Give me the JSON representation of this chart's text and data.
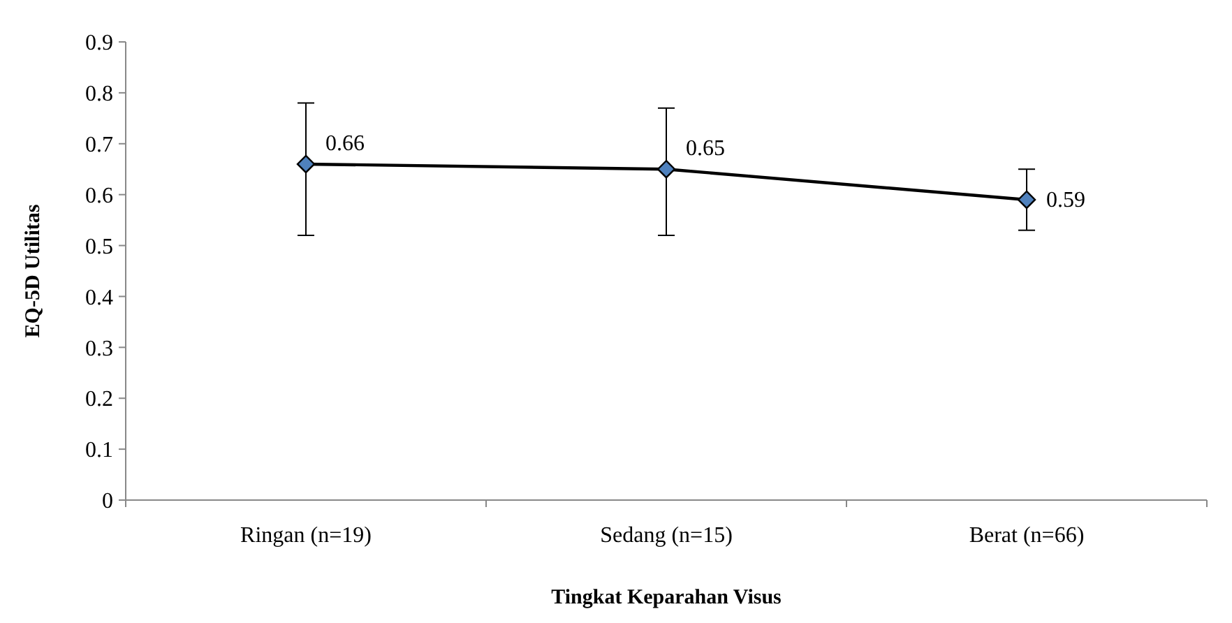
{
  "chart_data": {
    "type": "line",
    "xlabel": "Tingkat Keparahan Visus",
    "ylabel": "EQ-5D Utilitas",
    "categories": [
      "Ringan (n=19)",
      "Sedang (n=15)",
      "Berat (n=66)"
    ],
    "series": [
      {
        "color": "#000000",
        "values": [
          0.66,
          0.65,
          0.59
        ],
        "errors": [
          [
            0.52,
            0.78
          ],
          [
            0.52,
            0.77
          ],
          [
            0.53,
            0.65
          ]
        ]
      }
    ],
    "ylim": [
      0,
      0.9
    ],
    "yticks": [
      0,
      0.1,
      0.2,
      0.3,
      0.4,
      0.5,
      0.6,
      0.7,
      0.8,
      0.9
    ],
    "marker": "diamond",
    "data_labels": true,
    "grid": false,
    "line_style": "solid"
  }
}
